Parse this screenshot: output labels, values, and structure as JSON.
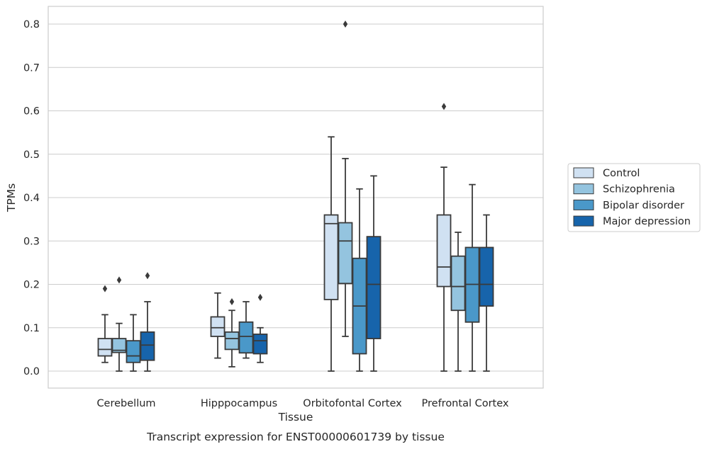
{
  "chart_data": {
    "type": "box",
    "xlabel": "Tissue",
    "ylabel": "TPMs",
    "caption": "Transcript expression for ENST00000601739 by tissue",
    "ylim": [
      -0.04,
      0.84
    ],
    "yticks": [
      0.0,
      0.1,
      0.2,
      0.3,
      0.4,
      0.5,
      0.6,
      0.7,
      0.8
    ],
    "ytick_labels": [
      "0.0",
      "0.1",
      "0.2",
      "0.3",
      "0.4",
      "0.5",
      "0.6",
      "0.7",
      "0.8"
    ],
    "grid": true,
    "legend_position": "right",
    "categories": [
      "Cerebellum",
      "Hipppocampus",
      "Orbitofontal Cortex",
      "Prefrontal Cortex"
    ],
    "series": [
      {
        "name": "Control",
        "color": "#d0e1f2",
        "boxes": [
          {
            "whislo": 0.02,
            "q1": 0.035,
            "med": 0.05,
            "q3": 0.075,
            "whishi": 0.13,
            "fliers": [
              0.19
            ]
          },
          {
            "whislo": 0.03,
            "q1": 0.08,
            "med": 0.1,
            "q3": 0.125,
            "whishi": 0.18,
            "fliers": []
          },
          {
            "whislo": 0.0,
            "q1": 0.165,
            "med": 0.34,
            "q3": 0.36,
            "whishi": 0.54,
            "fliers": []
          },
          {
            "whislo": 0.0,
            "q1": 0.195,
            "med": 0.24,
            "q3": 0.36,
            "whishi": 0.47,
            "fliers": [
              0.61
            ]
          }
        ]
      },
      {
        "name": "Schizophrenia",
        "color": "#94c4df",
        "boxes": [
          {
            "whislo": 0.0,
            "q1": 0.043,
            "med": 0.048,
            "q3": 0.075,
            "whishi": 0.11,
            "fliers": [
              0.21
            ]
          },
          {
            "whislo": 0.01,
            "q1": 0.05,
            "med": 0.075,
            "q3": 0.09,
            "whishi": 0.14,
            "fliers": [
              0.16
            ]
          },
          {
            "whislo": 0.08,
            "q1": 0.202,
            "med": 0.3,
            "q3": 0.342,
            "whishi": 0.49,
            "fliers": [
              0.8
            ]
          },
          {
            "whislo": 0.0,
            "q1": 0.14,
            "med": 0.195,
            "q3": 0.265,
            "whishi": 0.32,
            "fliers": []
          }
        ]
      },
      {
        "name": "Bipolar disorder",
        "color": "#4a98c9",
        "boxes": [
          {
            "whislo": 0.0,
            "q1": 0.02,
            "med": 0.035,
            "q3": 0.07,
            "whishi": 0.13,
            "fliers": []
          },
          {
            "whislo": 0.03,
            "q1": 0.042,
            "med": 0.08,
            "q3": 0.113,
            "whishi": 0.16,
            "fliers": []
          },
          {
            "whislo": 0.0,
            "q1": 0.04,
            "med": 0.15,
            "q3": 0.26,
            "whishi": 0.42,
            "fliers": []
          },
          {
            "whislo": 0.0,
            "q1": 0.113,
            "med": 0.2,
            "q3": 0.285,
            "whishi": 0.43,
            "fliers": []
          }
        ]
      },
      {
        "name": "Major depression",
        "color": "#1764ab",
        "boxes": [
          {
            "whislo": 0.0,
            "q1": 0.025,
            "med": 0.06,
            "q3": 0.09,
            "whishi": 0.16,
            "fliers": [
              0.22
            ]
          },
          {
            "whislo": 0.02,
            "q1": 0.04,
            "med": 0.07,
            "q3": 0.085,
            "whishi": 0.1,
            "fliers": [
              0.17
            ]
          },
          {
            "whislo": 0.0,
            "q1": 0.075,
            "med": 0.2,
            "q3": 0.31,
            "whishi": 0.45,
            "fliers": []
          },
          {
            "whislo": 0.0,
            "q1": 0.15,
            "med": 0.2,
            "q3": 0.285,
            "whishi": 0.36,
            "fliers": []
          }
        ]
      }
    ]
  }
}
